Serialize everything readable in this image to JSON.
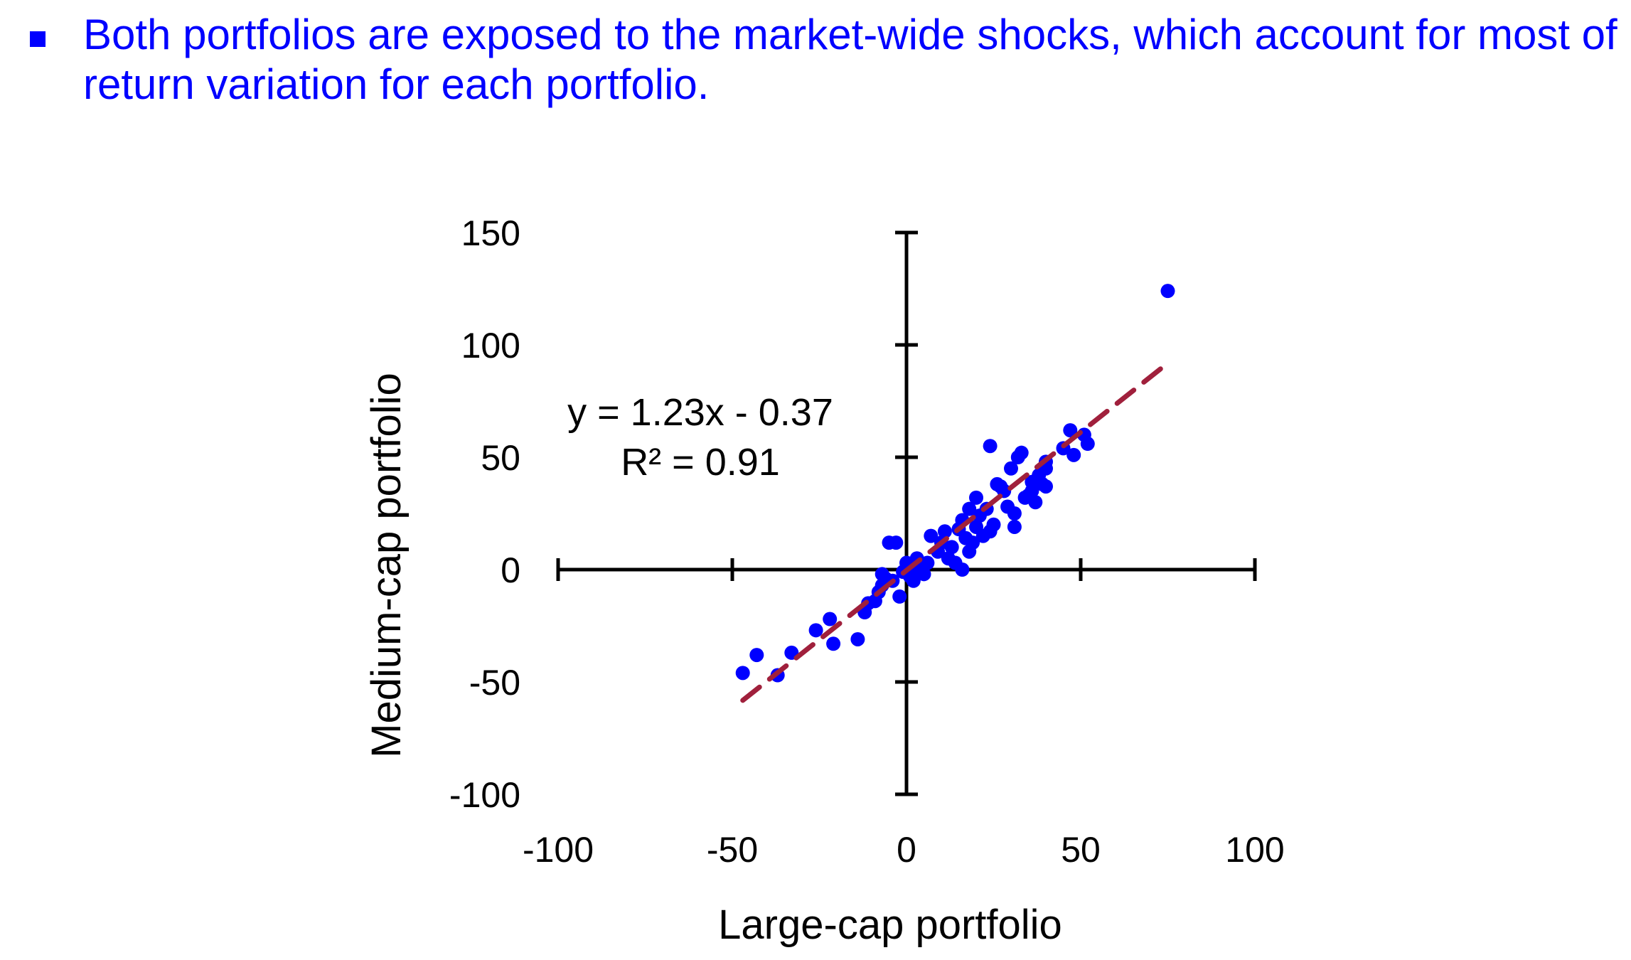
{
  "slide": {
    "bullet_text": "Both portfolios are exposed to the market-wide shocks, which account for most of return variation for each portfolio.",
    "bullet_color": "#0000ff"
  },
  "chart_data": {
    "type": "scatter",
    "xlabel": "Large-cap portfolio",
    "ylabel": "Medium-cap portfolio",
    "xlim": [
      -100,
      100
    ],
    "ylim": [
      -100,
      150
    ],
    "xticks": [
      "-100",
      "-50",
      "0",
      "50",
      "100"
    ],
    "yticks": [
      "150",
      "100",
      "50",
      "0",
      "-50",
      "-100"
    ],
    "xtick_values": [
      -100,
      -50,
      0,
      50,
      100
    ],
    "ytick_values": [
      150,
      100,
      50,
      0,
      -50,
      -100
    ],
    "grid": false,
    "point_color": "#0000ff",
    "trendline_color": "#a0203c",
    "trendline": {
      "slope": 1.23,
      "intercept": -0.37,
      "x_range": [
        -47,
        75
      ]
    },
    "equation": "y = 1.23x - 0.37",
    "r_squared": "R² = 0.91",
    "points": [
      [
        75,
        124
      ],
      [
        -47,
        -46
      ],
      [
        -43,
        -38
      ],
      [
        -37,
        -47
      ],
      [
        -33,
        -37
      ],
      [
        -26,
        -27
      ],
      [
        -22,
        -22
      ],
      [
        -21,
        -33
      ],
      [
        -14,
        -31
      ],
      [
        -12,
        -19
      ],
      [
        -11,
        -15
      ],
      [
        -9,
        -14
      ],
      [
        -8,
        -10
      ],
      [
        -7,
        -7
      ],
      [
        -7,
        -2
      ],
      [
        -6,
        -4
      ],
      [
        -5,
        12
      ],
      [
        -3,
        12
      ],
      [
        -4,
        -5
      ],
      [
        -2,
        -12
      ],
      [
        -1,
        -1
      ],
      [
        0,
        3
      ],
      [
        1,
        -3
      ],
      [
        2,
        -5
      ],
      [
        3,
        0
      ],
      [
        3,
        5
      ],
      [
        5,
        -2
      ],
      [
        6,
        3
      ],
      [
        7,
        15
      ],
      [
        9,
        8
      ],
      [
        10,
        12
      ],
      [
        11,
        17
      ],
      [
        12,
        5
      ],
      [
        13,
        10
      ],
      [
        14,
        3
      ],
      [
        15,
        18
      ],
      [
        16,
        22
      ],
      [
        16,
        0
      ],
      [
        17,
        14
      ],
      [
        18,
        8
      ],
      [
        18,
        27
      ],
      [
        19,
        12
      ],
      [
        20,
        19
      ],
      [
        20,
        32
      ],
      [
        21,
        24
      ],
      [
        22,
        15
      ],
      [
        23,
        27
      ],
      [
        24,
        17
      ],
      [
        25,
        20
      ],
      [
        26,
        38
      ],
      [
        27,
        37
      ],
      [
        28,
        35
      ],
      [
        29,
        28
      ],
      [
        30,
        45
      ],
      [
        31,
        25
      ],
      [
        31,
        19
      ],
      [
        32,
        50
      ],
      [
        33,
        52
      ],
      [
        34,
        32
      ],
      [
        35,
        33
      ],
      [
        36,
        35
      ],
      [
        36,
        39
      ],
      [
        37,
        30
      ],
      [
        38,
        42
      ],
      [
        39,
        38
      ],
      [
        40,
        37
      ],
      [
        40,
        45
      ],
      [
        40,
        48
      ],
      [
        24,
        55
      ],
      [
        45,
        54
      ],
      [
        47,
        62
      ],
      [
        48,
        51
      ],
      [
        51,
        60
      ],
      [
        52,
        56
      ]
    ]
  }
}
